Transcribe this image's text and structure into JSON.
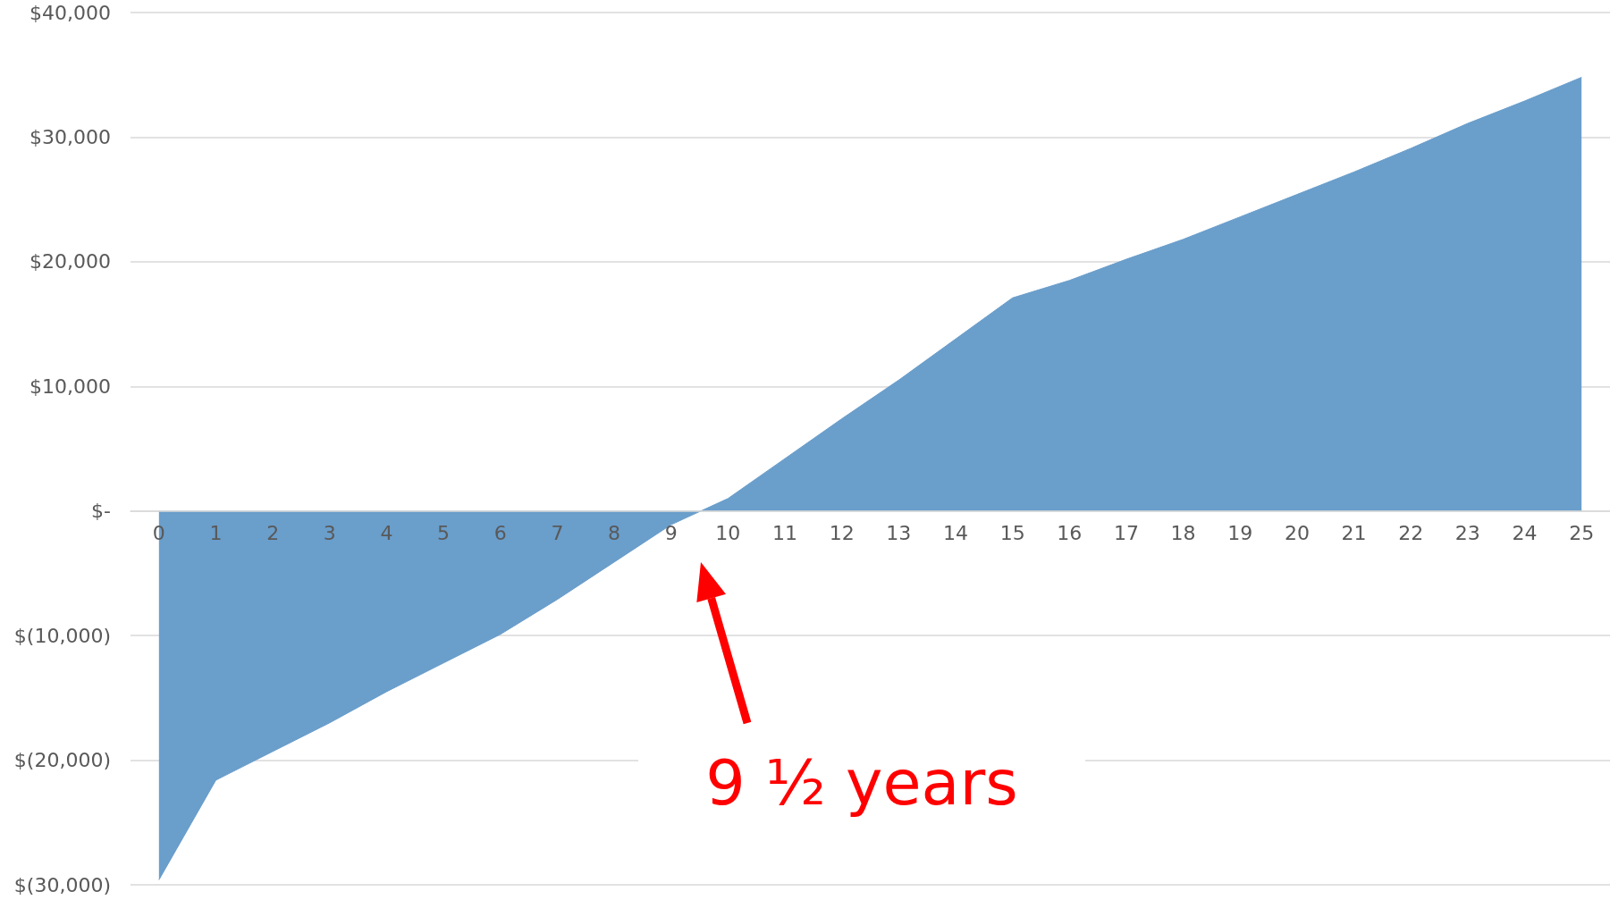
{
  "chart_data": {
    "type": "area",
    "x": [
      0,
      1,
      2,
      3,
      4,
      5,
      6,
      7,
      8,
      9,
      10,
      11,
      12,
      13,
      14,
      15,
      16,
      17,
      18,
      19,
      20,
      21,
      22,
      23,
      24,
      25
    ],
    "series": [
      {
        "color": "#6a9ecb",
        "values": [
          -29600,
          -21600,
          -19300,
          -17000,
          -14500,
          -12200,
          -9900,
          -7100,
          -4100,
          -1100,
          1000,
          4200,
          7400,
          10500,
          13800,
          17100,
          18500,
          20200,
          21800,
          23600,
          25400,
          27200,
          29100,
          31100,
          32900,
          34800
        ]
      }
    ],
    "xlim": [
      -0.5,
      25.5
    ],
    "xticks": [
      0,
      1,
      2,
      3,
      4,
      5,
      6,
      7,
      8,
      9,
      10,
      11,
      12,
      13,
      14,
      15,
      16,
      17,
      18,
      19,
      20,
      21,
      22,
      23,
      24,
      25
    ],
    "ylim": [
      -30000,
      40000
    ],
    "yticks": [
      {
        "value": -30000,
        "label": "$(30,000)"
      },
      {
        "value": -20000,
        "label": "$(20,000)"
      },
      {
        "value": -10000,
        "label": "$(10,000)"
      },
      {
        "value": 0,
        "label": "$-"
      },
      {
        "value": 10000,
        "label": "$10,000"
      },
      {
        "value": 20000,
        "label": "$20,000"
      },
      {
        "value": 30000,
        "label": "$30,000"
      },
      {
        "value": 40000,
        "label": "$40,000"
      }
    ],
    "grid": "y",
    "annotations": [
      "9 ½ years"
    ]
  }
}
